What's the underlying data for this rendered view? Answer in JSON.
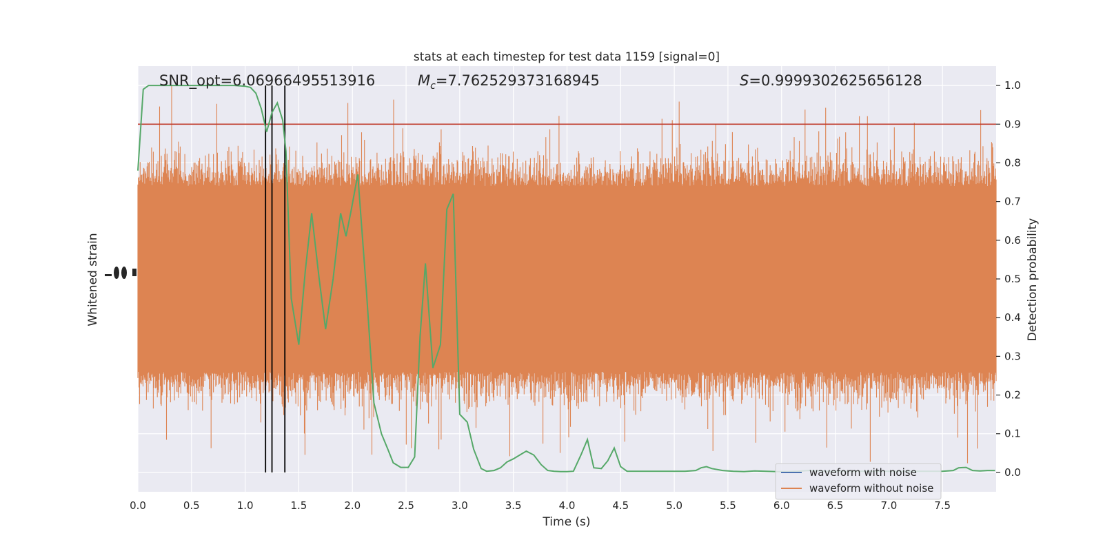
{
  "chart_data": {
    "type": "line",
    "title": "stats at each timestep for test data 1159 [signal=0]",
    "xlabel": "Time (s)",
    "ylabel_left": "Whitened strain",
    "ylabel_right": "Detection probability",
    "xlim": [
      0.0,
      8.0
    ],
    "ylim_right": [
      -0.05,
      1.05
    ],
    "grid": true,
    "legend_location": "lower right",
    "x_ticks": [
      "0.0",
      "0.5",
      "1.0",
      "1.5",
      "2.0",
      "2.5",
      "3.0",
      "3.5",
      "4.0",
      "4.5",
      "5.0",
      "5.5",
      "6.0",
      "6.5",
      "7.0",
      "7.5"
    ],
    "y_ticks_right": [
      "0.0",
      "0.1",
      "0.2",
      "0.3",
      "0.4",
      "0.5",
      "0.6",
      "0.7",
      "0.8",
      "0.9",
      "1.0"
    ],
    "annotations": {
      "snr": "SNR_opt=6.06966495513916",
      "mc_value": "=7.762529373168945",
      "s_value": "=0.9999302625656128"
    },
    "threshold": {
      "value": 0.9,
      "color": "#c0392b"
    },
    "vertical_lines": [
      1.19,
      1.25,
      1.37
    ],
    "series": [
      {
        "name": "waveform with noise",
        "color": "#4c72b0"
      },
      {
        "name": "waveform without noise",
        "color": "#dd8452"
      },
      {
        "color": "#55a868",
        "x": [
          0.0,
          0.05,
          0.1,
          0.2,
          0.3,
          0.4,
          0.5,
          0.6,
          0.7,
          0.8,
          0.9,
          1.0,
          1.05,
          1.1,
          1.15,
          1.2,
          1.25,
          1.3,
          1.35,
          1.38,
          1.43,
          1.5,
          1.56,
          1.62,
          1.69,
          1.75,
          1.82,
          1.89,
          1.94,
          1.99,
          2.05,
          2.13,
          2.2,
          2.27,
          2.33,
          2.38,
          2.45,
          2.52,
          2.58,
          2.63,
          2.68,
          2.75,
          2.82,
          2.88,
          2.94,
          3.0,
          3.07,
          3.13,
          3.2,
          3.25,
          3.32,
          3.38,
          3.44,
          3.5,
          3.56,
          3.62,
          3.69,
          3.76,
          3.82,
          3.88,
          3.94,
          4.0,
          4.06,
          4.13,
          4.19,
          4.25,
          4.32,
          4.38,
          4.44,
          4.5,
          4.56,
          4.62,
          4.69,
          4.75,
          4.85,
          5.0,
          5.1,
          5.2,
          5.25,
          5.3,
          5.35,
          5.45,
          5.55,
          5.65,
          5.75,
          5.85,
          5.95,
          6.05,
          6.15,
          6.25,
          6.35,
          6.45,
          6.6,
          6.75,
          6.9,
          7.05,
          7.2,
          7.35,
          7.5,
          7.6,
          7.65,
          7.72,
          7.78,
          7.85,
          7.92,
          7.99
        ],
        "y": [
          0.78,
          0.99,
          1.0,
          1.0,
          1.0,
          1.0,
          1.0,
          1.0,
          1.0,
          1.0,
          1.0,
          0.998,
          0.995,
          0.98,
          0.94,
          0.88,
          0.93,
          0.955,
          0.91,
          0.83,
          0.45,
          0.33,
          0.52,
          0.67,
          0.5,
          0.37,
          0.5,
          0.67,
          0.61,
          0.68,
          0.77,
          0.47,
          0.18,
          0.1,
          0.06,
          0.025,
          0.013,
          0.013,
          0.04,
          0.35,
          0.54,
          0.27,
          0.33,
          0.68,
          0.72,
          0.15,
          0.13,
          0.06,
          0.01,
          0.003,
          0.005,
          0.012,
          0.027,
          0.035,
          0.045,
          0.055,
          0.045,
          0.02,
          0.005,
          0.003,
          0.002,
          0.002,
          0.003,
          0.045,
          0.085,
          0.012,
          0.01,
          0.03,
          0.063,
          0.015,
          0.003,
          0.003,
          0.003,
          0.003,
          0.003,
          0.003,
          0.003,
          0.005,
          0.012,
          0.015,
          0.01,
          0.005,
          0.003,
          0.002,
          0.004,
          0.003,
          0.002,
          0.002,
          0.003,
          0.005,
          0.004,
          0.003,
          0.003,
          0.003,
          0.003,
          0.003,
          0.003,
          0.003,
          0.003,
          0.005,
          0.012,
          0.013,
          0.005,
          0.004,
          0.005,
          0.005
        ]
      }
    ]
  }
}
